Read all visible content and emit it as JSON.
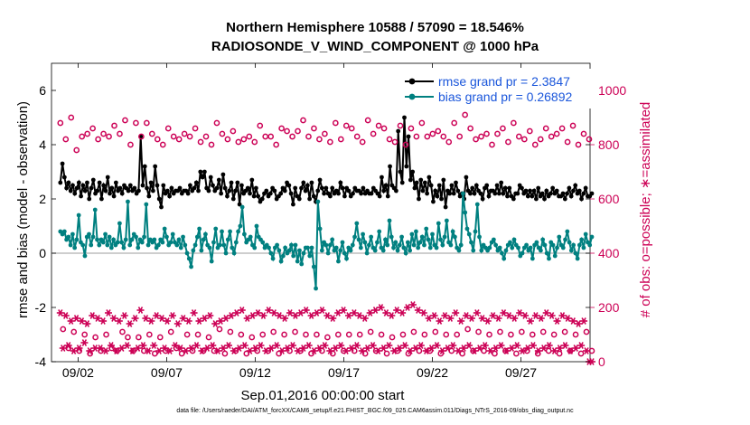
{
  "header": {
    "title_line1": "Northern Hemisphere 10588 / 57090 = 18.546%",
    "title_line2": "RADIOSONDE_V_WIND_COMPONENT @ 1000 hPa"
  },
  "footer_text": "data file: /Users/raeder/DAI/ATM_forcXX/CAM6_setup/f.e21.FHIST_BGC.f09_025.CAM6assim.011/Diags_NTrS_2016-09/obs_diag_output.nc",
  "colors": {
    "rmse": "#000000",
    "bias": "#008080",
    "obs": "#cc0055",
    "zero_line": "#b0b0b0"
  },
  "chart_data": {
    "type": "line",
    "xlabel": "Sep.01,2016 00:00:00 start",
    "ylabel": "rmse and bias (model - observation)",
    "y2label": "# of obs: o=possible; ∗=assimilated",
    "ylim": [
      -4,
      7
    ],
    "y2lim": [
      0,
      1100
    ],
    "xlim": [
      0.5,
      30.9
    ],
    "x_ticks": [
      2,
      7,
      12,
      17,
      22,
      27
    ],
    "x_tick_labels": [
      "09/02",
      "09/07",
      "09/12",
      "09/17",
      "09/22",
      "09/27"
    ],
    "y_ticks": [
      -4,
      -2,
      0,
      2,
      4,
      6
    ],
    "y_tick_labels": [
      "-4",
      "-2",
      "0",
      "2",
      "4",
      "6"
    ],
    "y2_ticks": [
      0,
      200,
      400,
      600,
      800,
      1000
    ],
    "y2_tick_labels": [
      "0",
      "200",
      "400",
      "600",
      "800",
      "1000"
    ],
    "grid": false,
    "legend_position": "top-right",
    "series": [
      {
        "name": "rmse grand pr = 2.3847",
        "axis": "left",
        "marker": "filled-circle",
        "values": [
          2.6,
          3.3,
          2.8,
          2.4,
          2.6,
          2.3,
          2.5,
          2.2,
          2.4,
          2.6,
          2.1,
          2.5,
          2.3,
          2.6,
          2.0,
          2.4,
          2.7,
          2.2,
          2.3,
          2.6,
          2.0,
          2.5,
          2.3,
          2.8,
          2.2,
          2.4,
          2.1,
          2.6,
          2.3,
          2.4,
          2.2,
          2.5,
          2.4,
          2.3,
          2.5,
          2.3,
          2.4,
          2.2,
          2.3,
          4.3,
          2.5,
          3.2,
          2.4,
          2.1,
          2.6,
          2.3,
          3.2,
          2.5,
          2.0,
          1.7,
          2.5,
          2.2,
          2.3,
          2.1,
          2.4,
          2.2,
          2.3,
          2.3,
          2.4,
          2.2,
          2.3,
          2.3,
          2.2,
          2.5,
          2.3,
          2.4,
          2.6,
          2.3,
          3.0,
          2.8,
          3.0,
          2.4,
          2.3,
          2.8,
          2.5,
          2.3,
          2.4,
          2.7,
          2.2,
          2.9,
          2.4,
          2.1,
          2.3,
          2.6,
          2.0,
          2.3,
          2.6,
          1.8,
          2.5,
          2.2,
          2.3,
          2.4,
          2.2,
          2.7,
          2.1,
          2.4,
          2.1,
          1.9,
          2.0,
          2.2,
          2.3,
          2.1,
          2.2,
          2.4,
          2.3,
          2.0,
          2.1,
          2.2,
          2.4,
          2.3,
          2.6,
          2.5,
          2.2,
          1.8,
          2.4,
          2.1,
          2.0,
          2.4,
          2.6,
          2.3,
          2.5,
          2.0,
          2.6,
          2.1,
          1.9,
          2.3,
          2.7,
          2.4,
          2.2,
          2.4,
          2.2,
          2.1,
          2.4,
          2.2,
          2.3,
          2.2,
          2.6,
          2.4,
          2.1,
          2.4,
          2.3,
          2.1,
          2.2,
          2.4,
          2.3,
          2.3,
          2.2,
          2.4,
          2.2,
          2.3,
          2.2,
          2.2,
          2.4,
          2.3,
          2.2,
          2.1,
          2.8,
          2.3,
          2.5,
          2.1,
          3.2,
          2.5,
          2.4,
          2.3,
          4.5,
          3.0,
          2.6,
          5.0,
          3.2,
          4.3,
          2.7,
          3.0,
          2.4,
          2.6,
          2.0,
          2.7,
          2.3,
          2.6,
          2.2,
          2.8,
          2.5,
          1.9,
          2.3,
          2.1,
          2.5,
          2.0,
          2.7,
          1.7,
          2.3,
          2.2,
          2.5,
          2.2,
          2.6,
          2.3,
          2.1,
          2.2,
          2.0,
          2.8,
          2.3,
          2.2,
          2.4,
          2.2,
          2.5,
          2.3,
          2.2,
          2.0,
          2.4,
          2.5,
          2.1,
          2.3,
          2.3,
          2.2,
          2.5,
          2.2,
          2.6,
          2.2,
          2.4,
          2.1,
          2.4,
          2.1,
          2.0,
          2.2,
          2.2,
          2.5,
          2.4,
          2.2,
          2.3,
          2.1,
          2.3,
          2.1,
          2.3,
          2.0,
          2.4,
          2.1,
          2.2,
          2.0,
          2.3,
          2.1,
          2.2,
          2.4,
          2.2,
          2.3,
          2.1,
          2.1,
          2.2,
          2.0,
          2.2,
          2.4,
          2.1,
          2.3,
          2.5,
          2.2,
          2.3,
          2.0,
          2.2,
          2.4,
          2.1,
          2.1,
          2.2
        ]
      },
      {
        "name": "bias grand pr = 0.26892",
        "axis": "left",
        "marker": "filled-circle",
        "values": [
          0.8,
          0.7,
          0.8,
          0.5,
          0.6,
          0.3,
          0.7,
          0.2,
          0.5,
          1.4,
          0.4,
          0.3,
          -0.1,
          0.6,
          0.7,
          0.3,
          0.6,
          1.6,
          0.5,
          0.3,
          0.5,
          0.4,
          0.7,
          0.3,
          0.6,
          0.2,
          0.5,
          0.3,
          0.4,
          1.1,
          0.4,
          0.2,
          0.5,
          1.9,
          0.3,
          0.5,
          0.7,
          0.6,
          0.2,
          0.5,
          0.4,
          0.6,
          1.8,
          0.3,
          0.5,
          0.4,
          0.5,
          0.2,
          0.3,
          0.5,
          0.4,
          0.9,
          0.6,
          0.3,
          0.4,
          0.7,
          0.4,
          0.3,
          0.5,
          0.2,
          0.6,
          0.3,
          0.0,
          -0.2,
          -0.5,
          0.1,
          0.3,
          0.6,
          0.9,
          0.1,
          0.5,
          0.7,
          0.3,
          0.2,
          -0.3,
          0.4,
          0.9,
          0.2,
          0.3,
          0.8,
          0.3,
          0.0,
          0.5,
          0.8,
          0.2,
          0.0,
          0.4,
          0.8,
          1.0,
          1.7,
          0.7,
          0.4,
          0.5,
          0.6,
          0.3,
          0.2,
          1.0,
          0.6,
          0.5,
          0.4,
          0.2,
          0.3,
          0.2,
          0.0,
          -0.2,
          0.2,
          0.3,
          0.1,
          -0.3,
          -0.1,
          0.2,
          0.0,
          0.1,
          0.3,
          -0.1,
          0.3,
          -0.3,
          0.1,
          -0.4,
          0.0,
          0.2,
          0.2,
          -0.1,
          0.2,
          -0.5,
          -1.3,
          1.9,
          0.9,
          0.1,
          0.4,
          0.3,
          0.0,
          0.3,
          0.5,
          0.1,
          0.2,
          -0.3,
          0.1,
          0.4,
          0.0,
          -0.2,
          0.2,
          0.1,
          0.3,
          0.6,
          1.1,
          0.5,
          0.2,
          0.7,
          0.4,
          0.0,
          0.3,
          0.6,
          0.2,
          0.1,
          0.4,
          0.8,
          0.2,
          0.1,
          0.5,
          0.3,
          1.2,
          0.6,
          0.2,
          0.4,
          0.1,
          0.3,
          0.6,
          0.2,
          0.0,
          0.4,
          0.1,
          0.7,
          0.3,
          0.8,
          0.2,
          0.4,
          0.6,
          0.3,
          0.9,
          0.5,
          0.2,
          0.7,
          0.3,
          0.2,
          1.1,
          0.5,
          0.3,
          0.6,
          1.2,
          0.4,
          0.3,
          0.8,
          0.6,
          0.2,
          0.1,
          0.3,
          2.2,
          1.5,
          0.9,
          0.7,
          0.4,
          0.1,
          0.8,
          1.8,
          0.6,
          0.1,
          0.3,
          0.2,
          0.1,
          0.2,
          0.4,
          0.5,
          0.3,
          0.1,
          0.2,
          0.0,
          -0.2,
          0.1,
          0.3,
          0.4,
          0.2,
          0.5,
          0.3,
          0.2,
          -0.1,
          0.0,
          0.2,
          0.3,
          0.1,
          0.2,
          -0.2,
          0.3,
          0.4,
          0.2,
          0.1,
          0.5,
          0.3,
          0.0,
          -0.2,
          0.4,
          0.3,
          -0.1,
          0.2,
          0.6,
          0.3,
          0.2,
          0.5,
          0.8,
          0.4,
          0.1,
          0.3,
          0.0,
          -0.2,
          0.3,
          0.5,
          0.2,
          0.7,
          0.4,
          0.3,
          0.6
        ]
      },
      {
        "name": "possible",
        "axis": "right",
        "marker": "open-circle",
        "values": [
          880,
          120,
          820,
          50,
          900,
          110,
          780,
          40,
          830,
          100,
          840,
          30,
          860,
          90,
          820,
          40,
          840,
          100,
          830,
          50,
          870,
          40,
          840,
          110,
          890,
          90,
          800,
          40,
          880,
          90,
          830,
          40,
          880,
          100,
          840,
          30,
          820,
          90,
          800,
          40,
          860,
          110,
          830,
          50,
          820,
          30,
          840,
          100,
          830,
          40,
          860,
          100,
          810,
          40,
          830,
          90,
          800,
          40,
          880,
          120,
          840,
          30,
          820,
          110,
          850,
          40,
          810,
          100,
          820,
          30,
          830,
          90,
          810,
          40,
          870,
          100,
          830,
          40,
          830,
          110,
          800,
          30,
          860,
          100,
          850,
          40,
          830,
          110,
          850,
          40,
          890,
          100,
          830,
          30,
          860,
          100,
          820,
          40,
          840,
          90,
          810,
          30,
          880,
          100,
          820,
          40,
          870,
          100,
          860,
          40,
          830,
          100,
          810,
          30,
          890,
          110,
          840,
          40,
          870,
          100,
          860,
          30,
          820,
          90,
          810,
          40,
          870,
          100,
          800,
          30,
          860,
          110,
          830,
          40,
          880,
          100,
          830,
          40,
          840,
          110,
          850,
          30,
          830,
          100,
          810,
          40,
          880,
          100,
          830,
          30,
          910,
          120,
          860,
          40,
          820,
          110,
          830,
          40,
          840,
          100,
          800,
          30,
          840,
          110,
          860,
          40,
          810,
          100,
          880,
          30,
          830,
          110,
          820,
          40,
          850,
          100,
          800,
          30,
          820,
          110,
          860,
          40,
          830,
          100,
          840,
          30,
          860,
          110,
          810,
          40,
          870,
          100,
          800,
          30,
          840,
          110,
          820,
          40
        ]
      },
      {
        "name": "assimilated",
        "axis": "right",
        "marker": "asterisk",
        "values": [
          180,
          50,
          170,
          60,
          150,
          40,
          160,
          50,
          150,
          70,
          140,
          40,
          170,
          50,
          160,
          50,
          150,
          40,
          180,
          60,
          160,
          40,
          150,
          50,
          170,
          60,
          140,
          40,
          160,
          50,
          190,
          60,
          160,
          40,
          150,
          60,
          170,
          40,
          160,
          50,
          150,
          40,
          170,
          60,
          140,
          50,
          160,
          40,
          150,
          50,
          180,
          60,
          150,
          40,
          160,
          50,
          170,
          60,
          140,
          40,
          150,
          50,
          160,
          60,
          170,
          40,
          180,
          50,
          190,
          60,
          160,
          40,
          170,
          50,
          180,
          60,
          170,
          40,
          190,
          50,
          180,
          60,
          170,
          40,
          160,
          50,
          180,
          60,
          170,
          40,
          180,
          50,
          190,
          60,
          170,
          40,
          180,
          50,
          190,
          60,
          170,
          40,
          160,
          50,
          180,
          60,
          190,
          40,
          170,
          50,
          180,
          60,
          170,
          40,
          160,
          50,
          180,
          60,
          190,
          40,
          200,
          50,
          180,
          60,
          170,
          40,
          190,
          50,
          180,
          60,
          200,
          40,
          210,
          50,
          190,
          60,
          180,
          40,
          160,
          50,
          170,
          60,
          150,
          40,
          170,
          50,
          160,
          60,
          180,
          40,
          150,
          50,
          170,
          60,
          160,
          40,
          180,
          50,
          160,
          60,
          150,
          40,
          170,
          50,
          160,
          60,
          180,
          40,
          170,
          50,
          160,
          60,
          180,
          40,
          170,
          50,
          150,
          60,
          170,
          40,
          160,
          50,
          180,
          60,
          170,
          40,
          150,
          50,
          170,
          60,
          160,
          40,
          150,
          50,
          140,
          60,
          150,
          40,
          0,
          0
        ]
      }
    ]
  }
}
